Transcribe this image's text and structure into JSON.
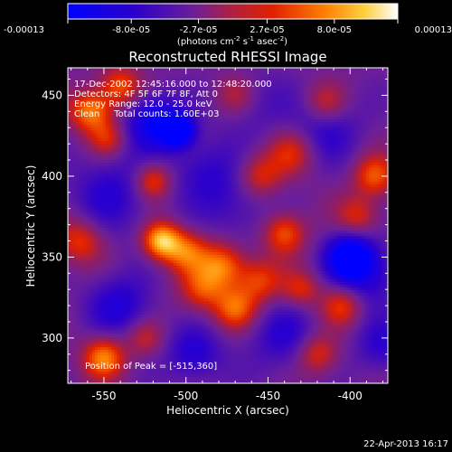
{
  "chart_data": {
    "type": "heatmap",
    "title": "Reconstructed RHESSI Image",
    "xlabel": "Heliocentric X (arcsec)",
    "ylabel": "Heliocentric Y (arcsec)",
    "xlim": [
      -572,
      -377
    ],
    "ylim": [
      272,
      467
    ],
    "x_ticks": [
      -550,
      -500,
      -450,
      -400
    ],
    "x_tick_labels": [
      "-550",
      "-500",
      "-450",
      "-400"
    ],
    "y_ticks": [
      300,
      350,
      400,
      450
    ],
    "y_tick_labels": [
      "300",
      "350",
      "400",
      "450"
    ],
    "colorbar": {
      "min": -0.00013,
      "max": 0.00013,
      "tick_values": [
        -0.00013,
        -8e-05,
        -2.7e-05,
        2.7e-05,
        8e-05,
        0.00013
      ],
      "tick_labels": [
        "-0.00013",
        "-8.0e-05",
        "-2.7e-05",
        "2.7e-05",
        "8.0e-05",
        "0.00013"
      ],
      "units_label": "(photons cm",
      "units_exp1": "-2",
      "units_mid": " s",
      "units_exp2": "-1",
      "units_mid2": " asec",
      "units_exp3": "-2",
      "units_end": ")"
    },
    "annotations": [
      "17-Dec-2002 12:45:16.000 to 12:48:20.000",
      "Detectors: 4F 5F 6F 7F 8F, Att 0",
      "Energy Range: 12.0 - 25.0 keV",
      "Clean     Total counts: 1.60E+03"
    ],
    "peak_label": "Position of Peak = [-515,360]",
    "peak": {
      "x": -515,
      "y": 360
    },
    "features": [
      {
        "x": -505,
        "y": 428,
        "v": -1.3,
        "s": 7
      },
      {
        "x": -520,
        "y": 434,
        "v": -0.9,
        "s": 12
      },
      {
        "x": -490,
        "y": 405,
        "v": -0.4,
        "s": 14
      },
      {
        "x": -400,
        "y": 350,
        "v": -1.1,
        "s": 10
      },
      {
        "x": -390,
        "y": 340,
        "v": -0.6,
        "s": 14
      },
      {
        "x": -545,
        "y": 390,
        "v": -0.5,
        "s": 18
      },
      {
        "x": -470,
        "y": 385,
        "v": -0.4,
        "s": 16
      },
      {
        "x": -540,
        "y": 320,
        "v": -0.6,
        "s": 14
      },
      {
        "x": -440,
        "y": 300,
        "v": -0.5,
        "s": 15
      },
      {
        "x": -495,
        "y": 290,
        "v": -0.6,
        "s": 12
      },
      {
        "x": -415,
        "y": 430,
        "v": -0.5,
        "s": 15
      },
      {
        "x": -460,
        "y": 445,
        "v": -0.3,
        "s": 15
      },
      {
        "x": -380,
        "y": 295,
        "v": -0.5,
        "s": 12
      },
      {
        "x": -515,
        "y": 360,
        "v": 1.3,
        "s": 8
      },
      {
        "x": -500,
        "y": 353,
        "v": 0.8,
        "s": 9
      },
      {
        "x": -478,
        "y": 345,
        "v": 0.9,
        "s": 10
      },
      {
        "x": -490,
        "y": 330,
        "v": 0.7,
        "s": 10
      },
      {
        "x": -470,
        "y": 318,
        "v": 0.8,
        "s": 9
      },
      {
        "x": -455,
        "y": 335,
        "v": 0.7,
        "s": 10
      },
      {
        "x": -440,
        "y": 365,
        "v": 0.8,
        "s": 9
      },
      {
        "x": -455,
        "y": 400,
        "v": 0.7,
        "s": 10
      },
      {
        "x": -435,
        "y": 415,
        "v": 0.6,
        "s": 10
      },
      {
        "x": -520,
        "y": 397,
        "v": 0.8,
        "s": 8
      },
      {
        "x": -558,
        "y": 440,
        "v": 1.0,
        "s": 9
      },
      {
        "x": -540,
        "y": 455,
        "v": 0.8,
        "s": 9
      },
      {
        "x": -548,
        "y": 423,
        "v": 0.6,
        "s": 8
      },
      {
        "x": -565,
        "y": 360,
        "v": 0.7,
        "s": 10
      },
      {
        "x": -550,
        "y": 288,
        "v": 1.0,
        "s": 9
      },
      {
        "x": -525,
        "y": 300,
        "v": 0.5,
        "s": 8
      },
      {
        "x": -385,
        "y": 400,
        "v": 0.8,
        "s": 9
      },
      {
        "x": -395,
        "y": 375,
        "v": 0.6,
        "s": 9
      },
      {
        "x": -405,
        "y": 320,
        "v": 0.7,
        "s": 9
      },
      {
        "x": -420,
        "y": 290,
        "v": 0.7,
        "s": 9
      },
      {
        "x": -430,
        "y": 330,
        "v": 0.6,
        "s": 8
      },
      {
        "x": -415,
        "y": 445,
        "v": 0.6,
        "s": 9
      },
      {
        "x": -470,
        "y": 450,
        "v": 0.5,
        "s": 9
      }
    ]
  },
  "footer": {
    "date_stamp": "22-Apr-2013 16:17"
  }
}
